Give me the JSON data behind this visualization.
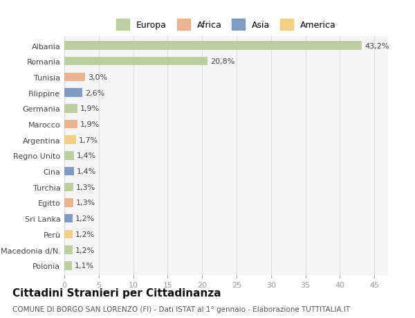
{
  "categories": [
    "Albania",
    "Romania",
    "Tunisia",
    "Filippine",
    "Germania",
    "Marocco",
    "Argentina",
    "Regno Unito",
    "Cina",
    "Turchia",
    "Egitto",
    "Sri Lanka",
    "Perù",
    "Macedonia d/N.",
    "Polonia"
  ],
  "values": [
    43.2,
    20.8,
    3.0,
    2.6,
    1.9,
    1.9,
    1.7,
    1.4,
    1.4,
    1.3,
    1.3,
    1.2,
    1.2,
    1.2,
    1.1
  ],
  "labels": [
    "43,2%",
    "20,8%",
    "3,0%",
    "2,6%",
    "1,9%",
    "1,9%",
    "1,7%",
    "1,4%",
    "1,4%",
    "1,3%",
    "1,3%",
    "1,2%",
    "1,2%",
    "1,2%",
    "1,1%"
  ],
  "colors": [
    "#b5c98e",
    "#b5c98e",
    "#e8a87c",
    "#6b8cba",
    "#b5c98e",
    "#e8a87c",
    "#f0c96e",
    "#b5c98e",
    "#6b8cba",
    "#b5c98e",
    "#e8a87c",
    "#6b8cba",
    "#f0c96e",
    "#b5c98e",
    "#b5c98e"
  ],
  "legend_labels": [
    "Europa",
    "Africa",
    "Asia",
    "America"
  ],
  "legend_colors": [
    "#b5c98e",
    "#e8a87c",
    "#6b8cba",
    "#f0c96e"
  ],
  "title": "Cittadini Stranieri per Cittadinanza",
  "subtitle": "COMUNE DI BORGO SAN LORENZO (FI) - Dati ISTAT al 1° gennaio - Elaborazione TUTTITALIA.IT",
  "xlim": [
    0,
    47
  ],
  "xticks": [
    0,
    5,
    10,
    15,
    20,
    25,
    30,
    35,
    40,
    45
  ],
  "bg_color": "#ffffff",
  "grid_color": "#dddddd",
  "bar_height": 0.55,
  "label_fontsize": 8,
  "tick_fontsize": 8,
  "title_fontsize": 11,
  "subtitle_fontsize": 7.5
}
